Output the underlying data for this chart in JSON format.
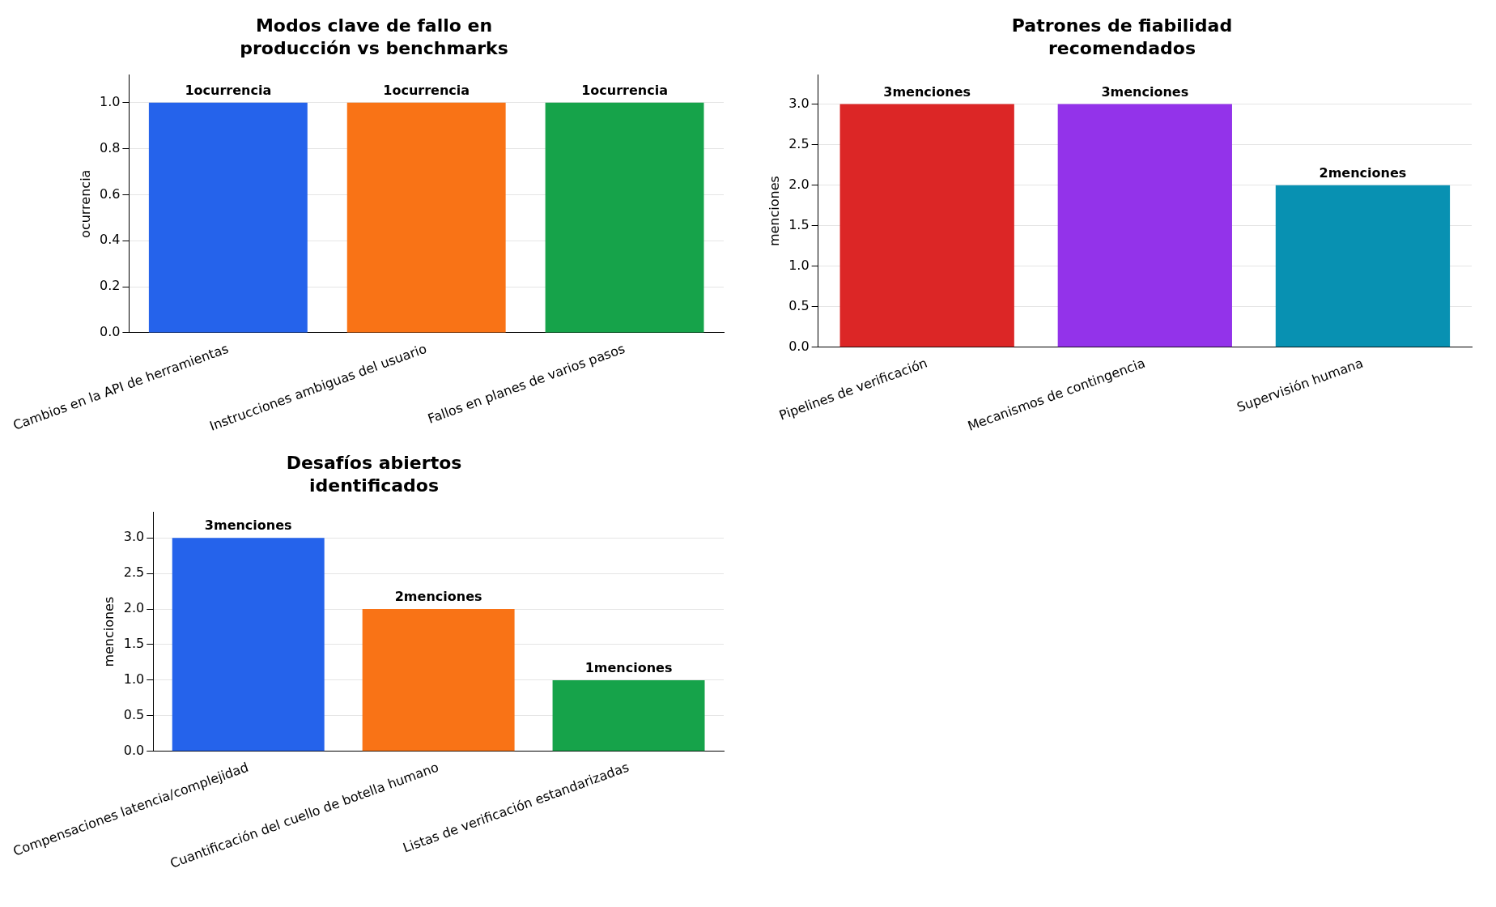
{
  "chart_data": [
    {
      "type": "bar",
      "title": "Modos clave de fallo en producción vs benchmarks",
      "ylabel": "ocurrencia",
      "categories": [
        "Cambios en la API de herramientas",
        "Instrucciones ambiguas del usuario",
        "Fallos en planes de varios pasos"
      ],
      "values": [
        1,
        1,
        1
      ],
      "colors": [
        "#2563eb",
        "#f97316",
        "#16a34a"
      ],
      "value_labels": [
        "1ocurrencia",
        "1ocurrencia",
        "1ocurrencia"
      ],
      "ylim": [
        0,
        1.12
      ],
      "yticks": [
        {
          "value": 0,
          "label": "0.0"
        },
        {
          "value": 0.2,
          "label": "0.2"
        },
        {
          "value": 0.4,
          "label": "0.4"
        },
        {
          "value": 0.6,
          "label": "0.6"
        },
        {
          "value": 0.8,
          "label": "0.8"
        },
        {
          "value": 1,
          "label": "1.0"
        }
      ],
      "grid": "y"
    },
    {
      "type": "bar",
      "title": "Patrones de fiabilidad recomendados",
      "ylabel": "menciones",
      "categories": [
        "Pipelines de verificación",
        "Mecanismos de contingencia",
        "Supervisión humana"
      ],
      "values": [
        3,
        3,
        2
      ],
      "colors": [
        "#dc2626",
        "#9333ea",
        "#0891b2"
      ],
      "value_labels": [
        "3menciones",
        "3menciones",
        "2menciones"
      ],
      "ylim": [
        0,
        3.36
      ],
      "yticks": [
        {
          "value": 0,
          "label": "0.0"
        },
        {
          "value": 0.5,
          "label": "0.5"
        },
        {
          "value": 1,
          "label": "1.0"
        },
        {
          "value": 1.5,
          "label": "1.5"
        },
        {
          "value": 2,
          "label": "2.0"
        },
        {
          "value": 2.5,
          "label": "2.5"
        },
        {
          "value": 3,
          "label": "3.0"
        }
      ],
      "grid": "y"
    },
    {
      "type": "bar",
      "title": "Desafíos abiertos identificados",
      "ylabel": "menciones",
      "categories": [
        "Compensaciones latencia/complejidad",
        "Cuantificación del cuello de botella humano",
        "Listas de verificación estandarizadas"
      ],
      "values": [
        3,
        2,
        1
      ],
      "colors": [
        "#2563eb",
        "#f97316",
        "#16a34a"
      ],
      "value_labels": [
        "3menciones",
        "2menciones",
        "1menciones"
      ],
      "ylim": [
        0,
        3.36
      ],
      "yticks": [
        {
          "value": 0,
          "label": "0.0"
        },
        {
          "value": 0.5,
          "label": "0.5"
        },
        {
          "value": 1,
          "label": "1.0"
        },
        {
          "value": 1.5,
          "label": "1.5"
        },
        {
          "value": 2,
          "label": "2.0"
        },
        {
          "value": 2.5,
          "label": "2.5"
        },
        {
          "value": 3,
          "label": "3.0"
        }
      ],
      "grid": "y"
    }
  ]
}
